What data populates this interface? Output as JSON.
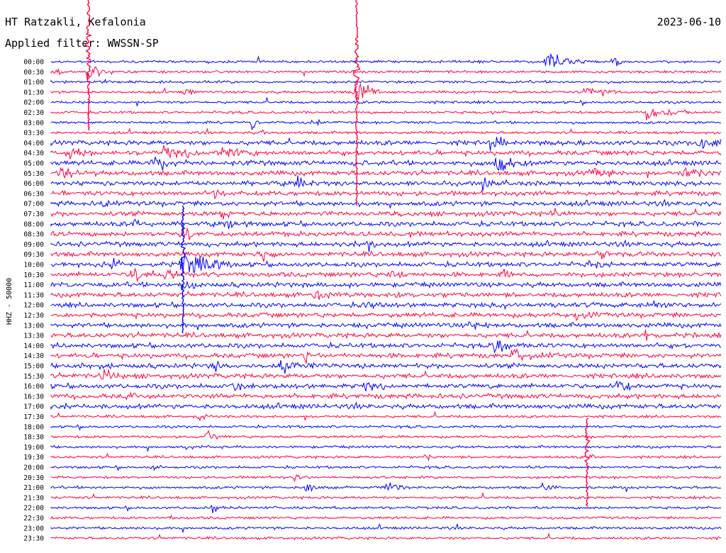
{
  "header": {
    "station": "HT Ratzakli, Kefalonia",
    "date": "2023-06-10",
    "filter": "Applied filter: WWSSN-SP"
  },
  "side_label": "HHZ - 50000",
  "chart_data": {
    "type": "helicorder",
    "colors": [
      "#0000ff",
      "#ff0040"
    ],
    "row_labels": [
      "00:00",
      "00:30",
      "01:00",
      "01:30",
      "02:00",
      "02:30",
      "03:00",
      "03:30",
      "04:00",
      "04:30",
      "05:00",
      "05:30",
      "06:00",
      "06:30",
      "07:00",
      "07:30",
      "08:00",
      "08:30",
      "09:00",
      "09:30",
      "10:00",
      "10:30",
      "11:00",
      "11:30",
      "12:00",
      "12:30",
      "13:00",
      "13:30",
      "14:00",
      "14:30",
      "15:00",
      "15:30",
      "16:00",
      "16:30",
      "17:00",
      "17:30",
      "18:00",
      "18:30",
      "19:00",
      "19:30",
      "20:00",
      "20:30",
      "21:00",
      "21:30",
      "22:00",
      "22:30",
      "23:00",
      "23:30"
    ],
    "grid": false
  }
}
